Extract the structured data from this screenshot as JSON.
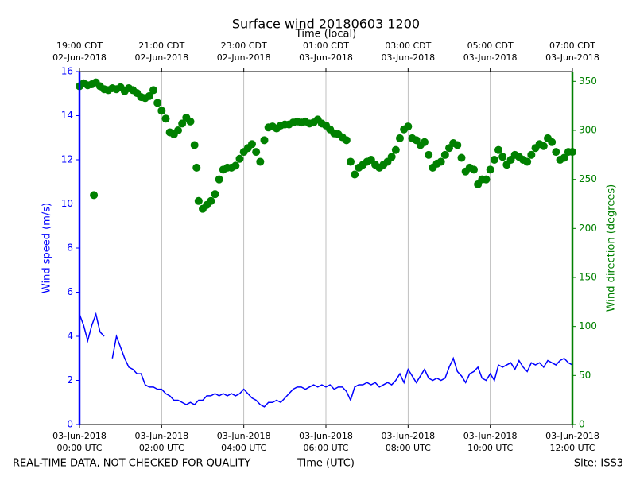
{
  "chart_data": {
    "type": "line",
    "title": "Surface wind 20180603 1200",
    "x2label": "Time (local)",
    "xlabel": "Time (UTC)",
    "ylabel": "Wind speed (m/s)",
    "y2label": "Wind direction (degrees)",
    "note": "REAL-TIME DATA, NOT CHECKED FOR QUALITY",
    "site": "Site: ISS3",
    "grid": true,
    "xlim": [
      0,
      12
    ],
    "xticks": [
      {
        "value": 0,
        "label": "03-Jun-2018\n00:00 UTC"
      },
      {
        "value": 2,
        "label": "03-Jun-2018\n02:00 UTC"
      },
      {
        "value": 4,
        "label": "03-Jun-2018\n04:00 UTC"
      },
      {
        "value": 6,
        "label": "03-Jun-2018\n06:00 UTC"
      },
      {
        "value": 8,
        "label": "03-Jun-2018\n08:00 UTC"
      },
      {
        "value": 10,
        "label": "03-Jun-2018\n10:00 UTC"
      },
      {
        "value": 12,
        "label": "03-Jun-2018\n12:00 UTC"
      }
    ],
    "x2ticks": [
      {
        "value": 0,
        "label": "19:00 CDT\n02-Jun-2018"
      },
      {
        "value": 2,
        "label": "21:00 CDT\n02-Jun-2018"
      },
      {
        "value": 4,
        "label": "23:00 CDT\n02-Jun-2018"
      },
      {
        "value": 6,
        "label": "01:00 CDT\n03-Jun-2018"
      },
      {
        "value": 8,
        "label": "03:00 CDT\n03-Jun-2018"
      },
      {
        "value": 10,
        "label": "05:00 CDT\n03-Jun-2018"
      },
      {
        "value": 12,
        "label": "07:00 CDT\n03-Jun-2018"
      }
    ],
    "ylim": [
      0,
      16
    ],
    "yticks": [
      0,
      2,
      4,
      6,
      8,
      10,
      12,
      14,
      16
    ],
    "y2lim": [
      0,
      360
    ],
    "y2ticks": [
      0,
      50,
      100,
      150,
      200,
      250,
      300,
      350
    ],
    "series": [
      {
        "name": "Wind speed",
        "type": "line",
        "color": "#0000ff",
        "x": [
          0,
          0.1,
          0.2,
          0.3,
          0.4,
          0.5,
          0.6,
          0.7,
          0.8,
          0.9,
          1,
          1.1,
          1.2,
          1.3,
          1.4,
          1.5,
          1.6,
          1.7,
          1.8,
          1.9,
          2,
          2.1,
          2.2,
          2.3,
          2.4,
          2.5,
          2.6,
          2.7,
          2.8,
          2.9,
          3,
          3.1,
          3.2,
          3.3,
          3.4,
          3.5,
          3.6,
          3.7,
          3.8,
          3.9,
          4,
          4.1,
          4.2,
          4.3,
          4.4,
          4.5,
          4.6,
          4.7,
          4.8,
          4.9,
          5,
          5.1,
          5.2,
          5.3,
          5.4,
          5.5,
          5.6,
          5.7,
          5.8,
          5.9,
          6,
          6.1,
          6.2,
          6.3,
          6.4,
          6.5,
          6.6,
          6.7,
          6.8,
          6.9,
          7,
          7.1,
          7.2,
          7.3,
          7.4,
          7.5,
          7.6,
          7.7,
          7.8,
          7.9,
          8,
          8.1,
          8.2,
          8.3,
          8.4,
          8.5,
          8.6,
          8.7,
          8.8,
          8.9,
          9,
          9.1,
          9.2,
          9.3,
          9.4,
          9.5,
          9.6,
          9.7,
          9.8,
          9.9,
          10,
          10.1,
          10.2,
          10.3,
          10.4,
          10.5,
          10.6,
          10.7,
          10.8,
          10.9,
          11,
          11.1,
          11.2,
          11.3,
          11.4,
          11.5,
          11.6,
          11.7,
          11.8,
          11.9,
          12
        ],
        "values": [
          5.0,
          4.5,
          3.8,
          4.5,
          5.0,
          4.2,
          4.0,
          null,
          3.0,
          4.0,
          3.5,
          3.0,
          2.6,
          2.5,
          2.3,
          2.3,
          1.8,
          1.7,
          1.7,
          1.6,
          1.6,
          1.4,
          1.3,
          1.1,
          1.1,
          1.0,
          0.9,
          1.0,
          0.9,
          1.1,
          1.1,
          1.3,
          1.3,
          1.4,
          1.3,
          1.4,
          1.3,
          1.4,
          1.3,
          1.4,
          1.6,
          1.4,
          1.2,
          1.1,
          0.9,
          0.8,
          1.0,
          1.0,
          1.1,
          1.0,
          1.2,
          1.4,
          1.6,
          1.7,
          1.7,
          1.6,
          1.7,
          1.8,
          1.7,
          1.8,
          1.7,
          1.8,
          1.6,
          1.7,
          1.7,
          1.5,
          1.1,
          1.7,
          1.8,
          1.8,
          1.9,
          1.8,
          1.9,
          1.7,
          1.8,
          1.9,
          1.8,
          2.0,
          2.3,
          1.9,
          2.5,
          2.2,
          1.9,
          2.2,
          2.5,
          2.1,
          2.0,
          2.1,
          2.0,
          2.1,
          2.6,
          3.0,
          2.4,
          2.2,
          1.9,
          2.3,
          2.4,
          2.6,
          2.1,
          2.0,
          2.3,
          2.0,
          2.7,
          2.6,
          2.7,
          2.8,
          2.5,
          2.9,
          2.6,
          2.4,
          2.8,
          2.7,
          2.8,
          2.6,
          2.9,
          2.8,
          2.7,
          2.9,
          3.0,
          2.8,
          2.7
        ]
      },
      {
        "name": "Wind direction",
        "type": "scatter",
        "axis": "y2",
        "color": "#008000",
        "x": [
          0,
          0.1,
          0.2,
          0.3,
          0.35,
          0.4,
          0.5,
          0.6,
          0.7,
          0.8,
          0.9,
          1,
          1.1,
          1.2,
          1.3,
          1.4,
          1.5,
          1.6,
          1.7,
          1.8,
          1.9,
          2,
          2.1,
          2.2,
          2.3,
          2.4,
          2.5,
          2.6,
          2.7,
          2.8,
          2.85,
          2.9,
          3,
          3.1,
          3.2,
          3.3,
          3.4,
          3.5,
          3.6,
          3.7,
          3.8,
          3.9,
          4,
          4.1,
          4.2,
          4.3,
          4.4,
          4.5,
          4.6,
          4.7,
          4.8,
          4.9,
          5,
          5.1,
          5.2,
          5.3,
          5.4,
          5.5,
          5.6,
          5.7,
          5.8,
          5.9,
          6,
          6.1,
          6.2,
          6.3,
          6.4,
          6.5,
          6.6,
          6.7,
          6.8,
          6.9,
          7,
          7.1,
          7.2,
          7.3,
          7.4,
          7.5,
          7.6,
          7.7,
          7.8,
          7.9,
          8,
          8.1,
          8.2,
          8.3,
          8.4,
          8.5,
          8.6,
          8.7,
          8.8,
          8.9,
          9,
          9.1,
          9.2,
          9.3,
          9.4,
          9.5,
          9.6,
          9.7,
          9.8,
          9.9,
          10,
          10.1,
          10.2,
          10.3,
          10.4,
          10.5,
          10.6,
          10.7,
          10.8,
          10.9,
          11,
          11.1,
          11.2,
          11.3,
          11.4,
          11.5,
          11.6,
          11.7,
          11.8,
          11.9,
          12
        ],
        "values": [
          345,
          348,
          346,
          347,
          234,
          349,
          345,
          342,
          341,
          343,
          342,
          344,
          340,
          343,
          341,
          338,
          334,
          333,
          335,
          341,
          328,
          320,
          312,
          298,
          296,
          300,
          307,
          313,
          309,
          285,
          262,
          228,
          220,
          224,
          228,
          235,
          250,
          260,
          262,
          262,
          264,
          271,
          278,
          282,
          286,
          278,
          268,
          290,
          303,
          304,
          302,
          305,
          306,
          306,
          308,
          309,
          308,
          309,
          307,
          308,
          311,
          307,
          305,
          301,
          297,
          296,
          293,
          290,
          268,
          255,
          262,
          265,
          268,
          270,
          265,
          262,
          265,
          268,
          273,
          280,
          292,
          301,
          304,
          292,
          290,
          285,
          288,
          275,
          262,
          266,
          268,
          275,
          282,
          287,
          285,
          272,
          258,
          262,
          260,
          245,
          250,
          250,
          260,
          270,
          280,
          273,
          265,
          270,
          275,
          273,
          270,
          268,
          275,
          282,
          286,
          284,
          292,
          288,
          278,
          270,
          272,
          278,
          278
        ]
      }
    ]
  }
}
